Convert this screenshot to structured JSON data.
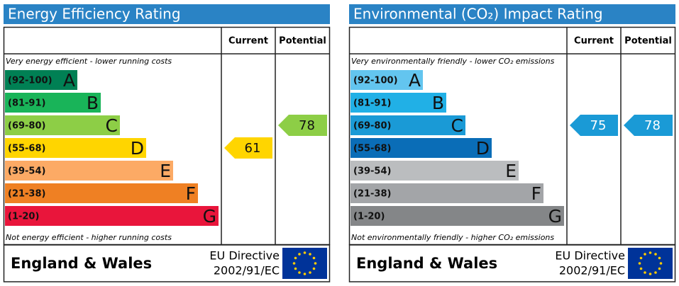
{
  "panels": [
    {
      "title": "Energy Efficiency Rating",
      "columns": [
        "Current",
        "Potential"
      ],
      "top_note": "Very energy efficient - lower running costs",
      "bottom_note": "Not energy efficient - higher running costs",
      "bands": [
        {
          "range": "(92-100)",
          "letter": "A"
        },
        {
          "range": "(81-91)",
          "letter": "B"
        },
        {
          "range": "(69-80)",
          "letter": "C"
        },
        {
          "range": "(55-68)",
          "letter": "D"
        },
        {
          "range": "(39-54)",
          "letter": "E"
        },
        {
          "range": "(21-38)",
          "letter": "F"
        },
        {
          "range": "(1-20)",
          "letter": "G"
        }
      ],
      "current": 61,
      "potential": 78,
      "region": "England & Wales",
      "directive": [
        "EU Directive",
        "2002/91/EC"
      ]
    },
    {
      "title": "Environmental (CO₂) Impact Rating",
      "columns": [
        "Current",
        "Potential"
      ],
      "top_note": "Very environmentally friendly - lower CO₂ emissions",
      "bottom_note": "Not environmentally friendly - higher CO₂ emissions",
      "bands": [
        {
          "range": "(92-100)",
          "letter": "A"
        },
        {
          "range": "(81-91)",
          "letter": "B"
        },
        {
          "range": "(69-80)",
          "letter": "C"
        },
        {
          "range": "(55-68)",
          "letter": "D"
        },
        {
          "range": "(39-54)",
          "letter": "E"
        },
        {
          "range": "(21-38)",
          "letter": "F"
        },
        {
          "range": "(1-20)",
          "letter": "G"
        }
      ],
      "current": 75,
      "potential": 78,
      "region": "England & Wales",
      "directive": [
        "EU Directive",
        "2002/91/EC"
      ]
    }
  ]
}
